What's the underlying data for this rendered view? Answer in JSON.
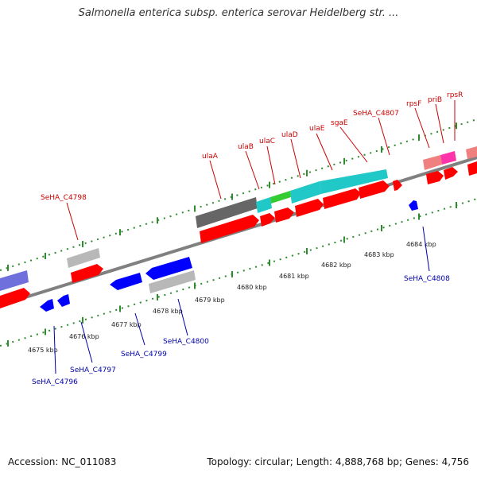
{
  "title": "Salmonella enterica subsp. enterica serovar Heidelberg str. ...",
  "footer": {
    "accession": "Accession: NC_011083",
    "summary": "Topology: circular; Length: 4,888,768 bp; Genes: 4,756"
  },
  "colors": {
    "axis": "#808080",
    "tick": "#2e8b2e",
    "forward_gene": "#ff0000",
    "reverse_gene": "#0000ff",
    "label_forward": "#cc0000",
    "label_reverse": "#0000aa",
    "operon_ula": "#20c8c8",
    "highlight_green": "#33cc33",
    "grey_feature": "#b8b8b8",
    "dark_grey_feature": "#666666",
    "magenta_feature": "#ff33aa",
    "pink_feature": "#f08080",
    "purple_feature": "#7070dd"
  },
  "kbp_ticks": [
    "4675 kbp",
    "4676 kbp",
    "4677 kbp",
    "4678 kbp",
    "4679 kbp",
    "4680 kbp",
    "4681 kbp",
    "4682 kbp",
    "4683 kbp",
    "4684 kbp"
  ],
  "gene_labels_forward": [
    "SeHA_C4798",
    "ulaA",
    "ulaB",
    "ulaC",
    "ulaD",
    "ulaE",
    "sgaE",
    "SeHA_C4807",
    "rpsF",
    "priB",
    "rpsR"
  ],
  "gene_labels_reverse": [
    "SeHA_C4796",
    "SeHA_C4797",
    "SeHA_C4799",
    "SeHA_C4800",
    "SeHA_C4808"
  ]
}
